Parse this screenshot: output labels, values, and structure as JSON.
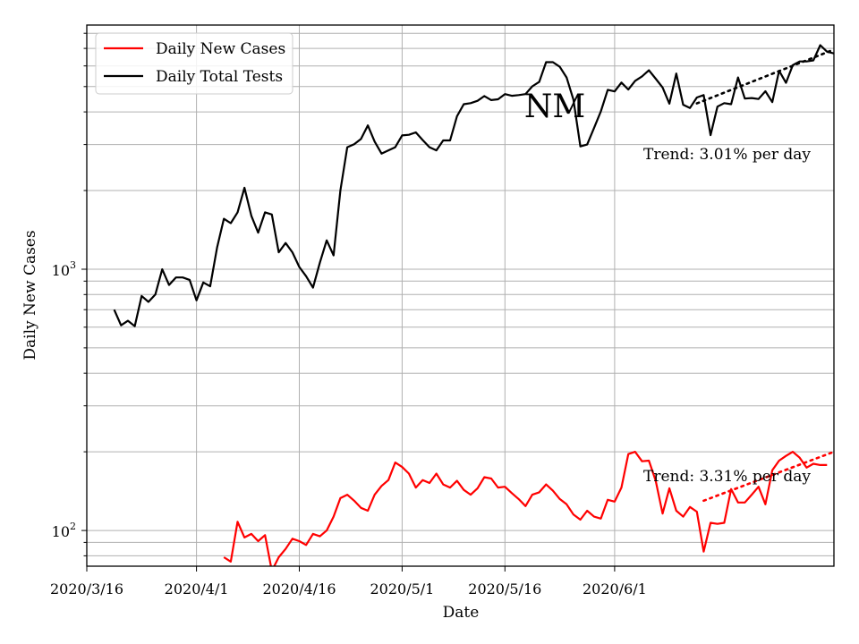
{
  "chart_data": {
    "type": "line",
    "yscale": "log",
    "title": "",
    "state_label": "NM",
    "xlabel": "Date",
    "ylabel": "Daily New Cases",
    "xlim_days_since_2020_03_16": [
      0,
      109
    ],
    "ylim": [
      73,
      8600
    ],
    "x_ticks": [
      {
        "day": 0,
        "label": "2020/3/16"
      },
      {
        "day": 16,
        "label": "2020/4/1"
      },
      {
        "day": 31,
        "label": "2020/4/16"
      },
      {
        "day": 46,
        "label": "2020/5/1"
      },
      {
        "day": 61,
        "label": "2020/5/16"
      },
      {
        "day": 77,
        "label": "2020/6/1"
      }
    ],
    "y_tick_labels": [
      {
        "value": 100,
        "base": "10",
        "exp": "2"
      },
      {
        "value": 1000,
        "base": "10",
        "exp": "3"
      }
    ],
    "y_gridlines": [
      80,
      90,
      100,
      200,
      300,
      400,
      500,
      600,
      700,
      800,
      900,
      1000,
      2000,
      3000,
      4000,
      5000,
      6000,
      7000,
      8000
    ],
    "legend": {
      "position": "top-left",
      "entries": [
        {
          "label": "Daily New Cases",
          "color": "#ff0000"
        },
        {
          "label": "Daily Total Tests",
          "color": "#000000"
        }
      ]
    },
    "series": [
      {
        "name": "Daily Total Tests",
        "color": "#000000",
        "start_day": 4,
        "values": [
          700,
          610,
          635,
          605,
          790,
          750,
          800,
          1000,
          870,
          930,
          930,
          910,
          760,
          890,
          860,
          1210,
          1560,
          1500,
          1650,
          2050,
          1600,
          1380,
          1650,
          1620,
          1160,
          1260,
          1160,
          1020,
          940,
          850,
          1060,
          1290,
          1130,
          2000,
          2930,
          3010,
          3150,
          3550,
          3080,
          2770,
          2850,
          2930,
          3250,
          3270,
          3340,
          3120,
          2930,
          2850,
          3110,
          3110,
          3850,
          4280,
          4320,
          4410,
          4600,
          4440,
          4470,
          4680,
          4610,
          4640,
          4680,
          5010,
          5210,
          6200,
          6200,
          5950,
          5420,
          4450,
          2950,
          3000,
          3470,
          4020,
          4860,
          4790,
          5180,
          4870,
          5260,
          5470,
          5770,
          5360,
          4960,
          4300,
          5610,
          4260,
          4140,
          4540,
          4640,
          3260,
          4190,
          4320,
          4280,
          5420,
          4500,
          4520,
          4480,
          4800,
          4360,
          5750,
          5170,
          6040,
          6240,
          6240,
          6300,
          7200,
          6800,
          6700
        ],
        "trend": {
          "label": "Trend: 3.01% per day",
          "start_day": 89,
          "end_day": 109,
          "start_value": 4310,
          "end_value": 6930
        }
      },
      {
        "name": "Daily New Cases",
        "color": "#ff0000",
        "start_day": 20,
        "values": [
          79,
          76,
          108,
          94,
          97,
          91,
          96,
          70,
          79,
          85,
          93,
          91,
          88,
          97,
          95,
          100,
          113,
          133,
          137,
          130,
          122,
          119,
          137,
          148,
          156,
          182,
          175,
          165,
          146,
          156,
          152,
          165,
          150,
          146,
          155,
          143,
          137,
          145,
          160,
          158,
          146,
          147,
          139,
          132,
          124,
          137,
          140,
          150,
          142,
          132,
          126,
          115,
          110,
          119,
          113,
          111,
          131,
          129,
          146,
          196,
          200,
          184,
          185,
          155,
          116,
          145,
          119,
          113,
          123,
          118,
          83,
          107,
          106,
          107,
          144,
          128,
          128,
          137,
          147,
          126,
          170,
          185,
          193,
          200,
          190,
          174,
          180,
          178,
          178
        ],
        "trend": {
          "label": "Trend: 3.31% per day",
          "start_day": 90,
          "end_day": 109,
          "start_value": 130,
          "end_value": 200
        }
      }
    ]
  }
}
